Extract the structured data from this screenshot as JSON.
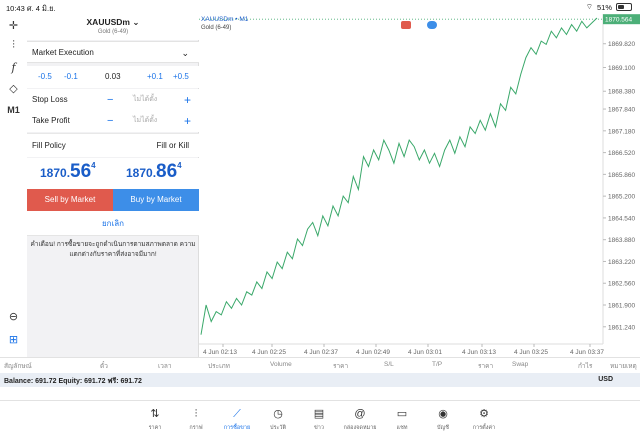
{
  "status": {
    "time": "10:43",
    "date": "ศ. 4 มิ.ย.",
    "battery": "51%"
  },
  "symbol": {
    "name": "XAUUSDm",
    "desc": "Gold (6-49)"
  },
  "order": {
    "execution": "Market Execution",
    "volume": {
      "m05": "-0.5",
      "m01": "-0.1",
      "value": "0.03",
      "p01": "+0.1",
      "p05": "+0.5"
    },
    "stop_loss": {
      "label": "Stop Loss",
      "placeholder": "ไม่ได้ตั้ง"
    },
    "take_profit": {
      "label": "Take Profit",
      "placeholder": "ไม่ได้ตั้ง"
    },
    "fill_policy": {
      "label": "Fill Policy",
      "value": "Fill or Kill"
    },
    "bid": {
      "a": "1870.",
      "b": "56",
      "c": "4"
    },
    "ask": {
      "a": "1870.",
      "b": "86",
      "c": "4"
    },
    "sell_label": "Sell by Market",
    "buy_label": "Buy by Market",
    "cancel_label": "ยกเลิก",
    "warning": "คำเตือน! การซื้อขายจะถูกดำเนินการตามสภาพตลาด ความแตกต่างกับราคาที่ส่งอาจมีมาก!"
  },
  "toolbar": {
    "timeframe": "M1"
  },
  "chart_data": {
    "type": "line",
    "title": "XAUUSDm • M1",
    "subtitle": "Gold (6-49)",
    "current_price": "1870.564",
    "y_ticks": [
      "1869.820",
      "1869.100",
      "1868.380",
      "1867.840",
      "1867.180",
      "1866.520",
      "1865.860",
      "1865.200",
      "1864.540",
      "1863.880",
      "1863.220",
      "1862.560",
      "1861.900",
      "1861.240"
    ],
    "x_ticks": [
      "4 Jun 02:13",
      "4 Jun 02:25",
      "4 Jun 02:37",
      "4 Jun 02:49",
      "4 Jun 03:01",
      "4 Jun 03:13",
      "4 Jun 03:25",
      "4 Jun 03:37"
    ],
    "series": [
      {
        "values": [
          1861.0,
          1861.9,
          1861.4,
          1861.7,
          1861.6,
          1862.0,
          1861.8,
          1862.1,
          1861.9,
          1862.3,
          1862.2,
          1862.6,
          1862.4,
          1862.9,
          1862.7,
          1863.2,
          1863.0,
          1863.5,
          1863.3,
          1863.9,
          1863.7,
          1864.2,
          1864.4,
          1864.0,
          1864.6,
          1864.3,
          1864.9,
          1864.6,
          1865.2,
          1865.0,
          1865.8,
          1865.4,
          1866.4,
          1866.1,
          1866.6,
          1866.3,
          1866.9,
          1866.6,
          1866.2,
          1866.8,
          1866.4,
          1866.9,
          1866.7,
          1866.3,
          1866.6,
          1866.2,
          1866.5,
          1866.1,
          1866.6,
          1866.9,
          1866.5,
          1867.0,
          1866.7,
          1867.3,
          1867.1,
          1867.5,
          1867.2,
          1867.7,
          1867.3,
          1868.0,
          1867.8,
          1868.5,
          1868.3,
          1868.9,
          1869.4,
          1869.7,
          1869.5,
          1869.9,
          1869.8,
          1870.2,
          1870.0,
          1870.3,
          1870.1,
          1870.4,
          1870.2,
          1870.5,
          1870.3,
          1870.45,
          1870.6
        ]
      }
    ]
  },
  "table_headers": [
    "สัญลักษณ์",
    "ตั๋ว",
    "เวลา",
    "ประเภท",
    "Volume",
    "ราคา",
    "S/L",
    "T/P",
    "ราคา",
    "Swap",
    "กำไร",
    "หมายเหตุ"
  ],
  "balance": {
    "text": "Balance: 691.72 Equity: 691.72 ฟรี: 691.72",
    "currency": "USD"
  },
  "nav": [
    "ราคา",
    "กราฟ",
    "การซื้อขาย",
    "ประวัติ",
    "ข่าว",
    "กล่องจดหมาย",
    "แชท",
    "บัญชี",
    "การตั้งค่า"
  ]
}
